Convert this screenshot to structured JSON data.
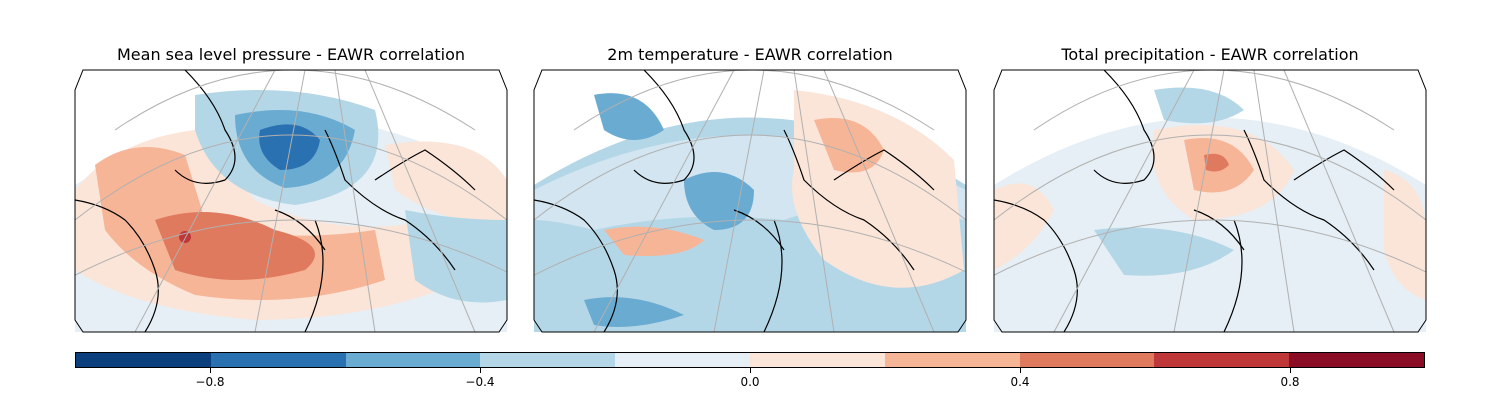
{
  "panels": [
    {
      "title": "Mean sea level pressure - EAWR correlation",
      "field": "mean-sea-level-pressure"
    },
    {
      "title": "2m temperature - EAWR correlation",
      "field": "2m-temperature"
    },
    {
      "title": "Total precipitation - EAWR correlation",
      "field": "total-precipitation"
    }
  ],
  "colorbar": {
    "range": [
      -1.0,
      1.0
    ],
    "colors": [
      "#0b3f7e",
      "#2a71b1",
      "#6aabd2",
      "#b4d7e8",
      "#e6eff5",
      "#fbe5d8",
      "#f6b597",
      "#e07a5f",
      "#c0373a",
      "#8b0c25"
    ],
    "ticks": [
      {
        "value": -0.8,
        "label": "−0.8"
      },
      {
        "value": -0.4,
        "label": "−0.4"
      },
      {
        "value": 0.0,
        "label": "0.0"
      },
      {
        "value": 0.4,
        "label": "0.4"
      },
      {
        "value": 0.8,
        "label": "0.8"
      }
    ]
  }
}
